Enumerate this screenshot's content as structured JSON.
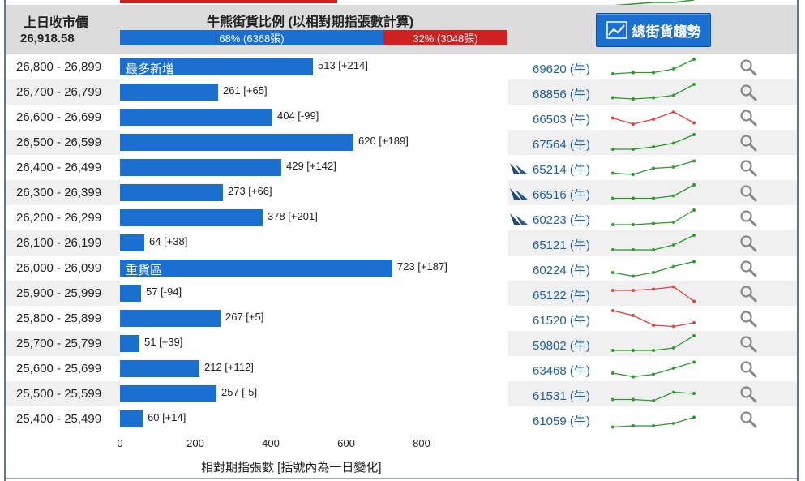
{
  "header": {
    "prev_close_label": "上日收市價",
    "prev_close_value": "26,918.58",
    "ratio_title": "牛熊街貨比例 (以相對期指張數計算)",
    "bull_label": "68% (6368張)",
    "bear_label": "32% (3048張)",
    "bull_pct": 68,
    "trend_button": "總街貨趨勢"
  },
  "colors": {
    "bull": "#1a6fd0",
    "bear": "#cc2222",
    "up_line": "#2a9a2a",
    "down_line": "#e04040"
  },
  "rows": [
    {
      "range": "26,800 - 26,899",
      "value": 513,
      "label": "513 [+214]",
      "inbar": "最多新增",
      "count": "69620 (牛)",
      "ship": false,
      "trend": "up",
      "spark": [
        2,
        3,
        3,
        6,
        14
      ]
    },
    {
      "range": "26,700 - 26,799",
      "value": 261,
      "label": "261 [+65]",
      "inbar": "",
      "count": "68856 (牛)",
      "ship": false,
      "trend": "up",
      "spark": [
        3,
        2,
        3,
        5,
        14
      ]
    },
    {
      "range": "26,600 - 26,699",
      "value": 404,
      "label": "404 [-99]",
      "inbar": "",
      "count": "66503 (牛)",
      "ship": false,
      "trend": "down",
      "spark": [
        7,
        2,
        6,
        12,
        3
      ]
    },
    {
      "range": "26,500 - 26,599",
      "value": 620,
      "label": "620 [+189]",
      "inbar": "",
      "count": "67564 (牛)",
      "ship": false,
      "trend": "up",
      "spark": [
        2,
        2,
        4,
        7,
        14
      ]
    },
    {
      "range": "26,400 - 26,499",
      "value": 429,
      "label": "429 [+142]",
      "inbar": "",
      "count": "65214 (牛)",
      "ship": true,
      "trend": "up",
      "spark": [
        3,
        2,
        7,
        8,
        13
      ]
    },
    {
      "range": "26,300 - 26,399",
      "value": 273,
      "label": "273 [+66]",
      "inbar": "",
      "count": "66516 (牛)",
      "ship": true,
      "trend": "up",
      "spark": [
        3,
        3,
        3,
        5,
        14
      ]
    },
    {
      "range": "26,200 - 26,299",
      "value": 378,
      "label": "378 [+201]",
      "inbar": "",
      "count": "60223 (牛)",
      "ship": true,
      "trend": "up",
      "spark": [
        2,
        2,
        3,
        4,
        14
      ]
    },
    {
      "range": "26,100 - 26,199",
      "value": 64,
      "label": "64 [+38]",
      "inbar": "",
      "count": "65121 (牛)",
      "ship": false,
      "trend": "up",
      "spark": [
        2,
        2,
        2,
        6,
        14
      ]
    },
    {
      "range": "26,000 - 26,099",
      "value": 723,
      "label": "723 [+187]",
      "inbar": "重貨區",
      "count": "60224 (牛)",
      "ship": false,
      "trend": "up",
      "spark": [
        4,
        1,
        4,
        9,
        13
      ]
    },
    {
      "range": "25,900 - 25,999",
      "value": 57,
      "label": "57 [-94]",
      "inbar": "",
      "count": "65122 (牛)",
      "ship": false,
      "trend": "down",
      "spark": [
        10,
        10,
        11,
        13,
        1
      ]
    },
    {
      "range": "25,800 - 25,899",
      "value": 267,
      "label": "267 [+5]",
      "inbar": "",
      "count": "61520 (牛)",
      "ship": false,
      "trend": "down",
      "spark": [
        14,
        10,
        2,
        1,
        4
      ]
    },
    {
      "range": "25,700 - 25,799",
      "value": 51,
      "label": "51 [+39]",
      "inbar": "",
      "count": "59802 (牛)",
      "ship": false,
      "trend": "up",
      "spark": [
        2,
        2,
        2,
        4,
        14
      ]
    },
    {
      "range": "25,600 - 25,699",
      "value": 212,
      "label": "212 [+112]",
      "inbar": "",
      "count": "63468 (牛)",
      "ship": false,
      "trend": "up",
      "spark": [
        4,
        1,
        3,
        8,
        13
      ]
    },
    {
      "range": "25,500 - 25,599",
      "value": 257,
      "label": "257 [-5]",
      "inbar": "",
      "count": "61531 (牛)",
      "ship": false,
      "trend": "up",
      "spark": [
        3,
        3,
        2,
        9,
        8
      ]
    },
    {
      "range": "25,400 - 25,499",
      "value": 60,
      "label": "60 [+14]",
      "inbar": "",
      "count": "61059 (牛)",
      "ship": false,
      "trend": "up",
      "spark": [
        1,
        2,
        2,
        4,
        9
      ]
    }
  ],
  "axis": {
    "ticks": [
      "0",
      "200",
      "400",
      "600",
      "800"
    ],
    "title": "相對期指張數 [括號內為一日變化]"
  }
}
